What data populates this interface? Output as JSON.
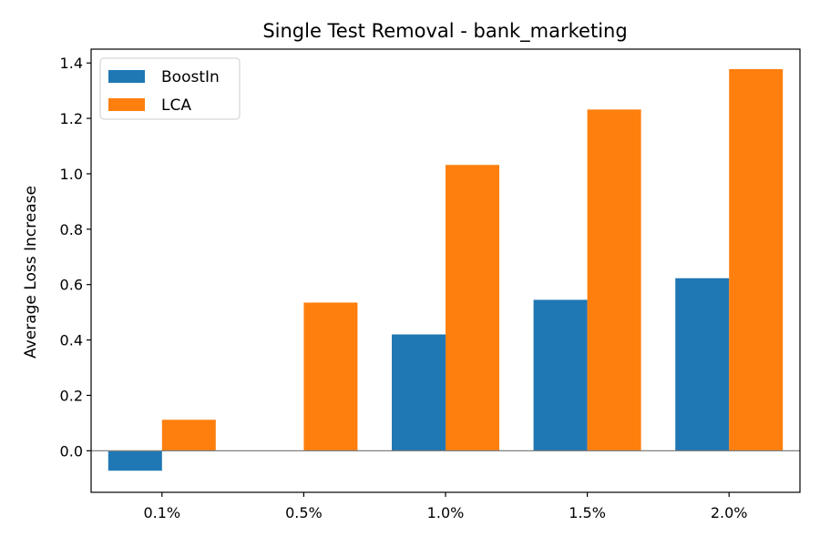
{
  "chart_data": {
    "type": "bar",
    "title": "Single Test Removal - bank_marketing",
    "xlabel": "",
    "ylabel": "Average Loss Increase",
    "categories": [
      "0.1%",
      "0.5%",
      "1.0%",
      "1.5%",
      "2.0%"
    ],
    "series": [
      {
        "name": "BoostIn",
        "color": "#1f77b4",
        "values": [
          -0.072,
          0.0,
          0.42,
          0.545,
          0.623
        ]
      },
      {
        "name": "LCA",
        "color": "#ff7f0e",
        "values": [
          0.112,
          0.535,
          1.032,
          1.232,
          1.378
        ]
      }
    ],
    "ylim": [
      -0.15,
      1.45
    ],
    "yticks": [
      0.0,
      0.2,
      0.4,
      0.6,
      0.8,
      1.0,
      1.2,
      1.4
    ],
    "ytick_labels": [
      "0.0",
      "0.2",
      "0.4",
      "0.6",
      "0.8",
      "1.0",
      "1.2",
      "1.4"
    ],
    "zero_line": true,
    "grid": false,
    "legend_position": "upper-left"
  }
}
